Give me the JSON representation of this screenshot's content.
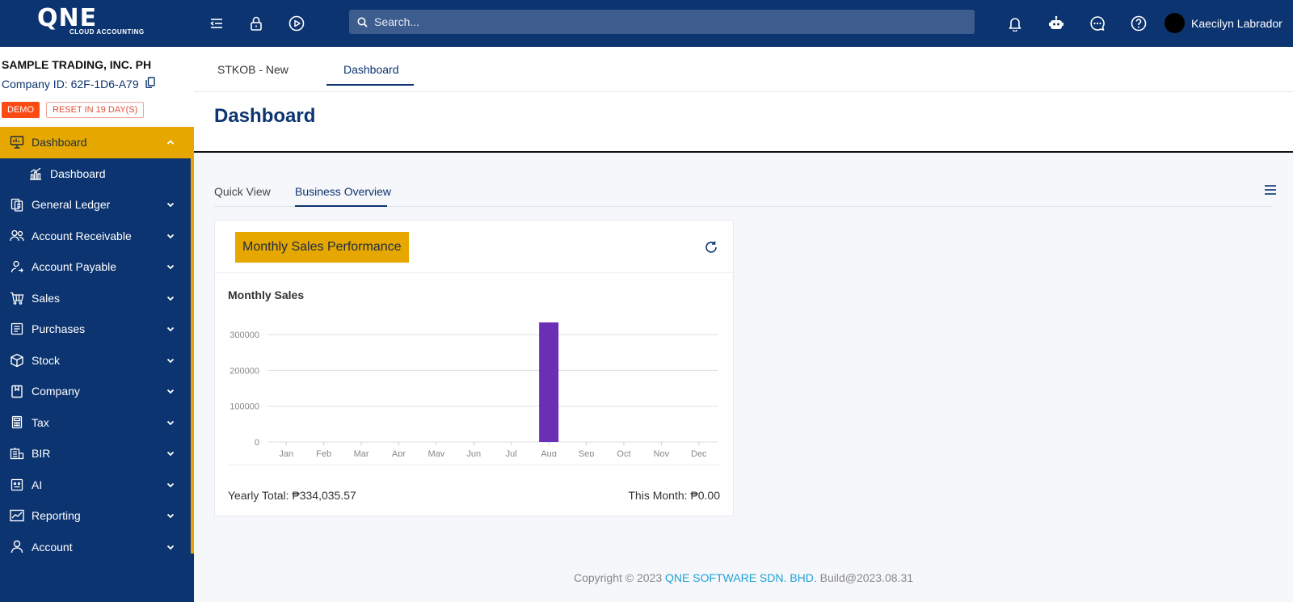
{
  "app": {
    "logo_text": "QNE",
    "logo_subtext": "CLOUD ACCOUNTING"
  },
  "topbar": {
    "search_placeholder": "Search...",
    "user_name": "Kaecilyn Labrador"
  },
  "company": {
    "name": "SAMPLE TRADING, INC. PH",
    "id_label": "Company ID: 62F-1D6-A79",
    "badge_demo": "DEMO",
    "badge_reset": "RESET IN 19 DAY(S)"
  },
  "sidebar": {
    "items": [
      {
        "label": "Dashboard",
        "icon": "monitor-icon",
        "active": true
      },
      {
        "label": "Dashboard",
        "icon": "chart-icon",
        "sub": true
      },
      {
        "label": "General Ledger",
        "icon": "ledger-icon"
      },
      {
        "label": "Account Receivable",
        "icon": "receivable-icon"
      },
      {
        "label": "Account Payable",
        "icon": "payable-icon"
      },
      {
        "label": "Sales",
        "icon": "cart-icon"
      },
      {
        "label": "Purchases",
        "icon": "purchases-icon"
      },
      {
        "label": "Stock",
        "icon": "box-icon"
      },
      {
        "label": "Company",
        "icon": "book-icon"
      },
      {
        "label": "Tax",
        "icon": "calculator-icon"
      },
      {
        "label": "BIR",
        "icon": "bank-icon"
      },
      {
        "label": "AI",
        "icon": "ai-icon"
      },
      {
        "label": "Reporting",
        "icon": "trend-icon"
      },
      {
        "label": "Account",
        "icon": "user-icon"
      }
    ]
  },
  "page_tabs": [
    {
      "label": "STKOB - New"
    },
    {
      "label": "Dashboard",
      "active": true
    }
  ],
  "page_title": "Dashboard",
  "sub_tabs": [
    {
      "label": "Quick View"
    },
    {
      "label": "Business Overview",
      "active": true
    }
  ],
  "card": {
    "title": "Monthly Sales Performance",
    "chart_title": "Monthly Sales",
    "yearly_total": "Yearly Total: ₱334,035.57",
    "this_month": "This Month: ₱0.00"
  },
  "chart_data": {
    "type": "bar",
    "title": "Monthly Sales",
    "categories": [
      "Jan",
      "Feb",
      "Mar",
      "Apr",
      "May",
      "Jun",
      "Jul",
      "Aug",
      "Sep",
      "Oct",
      "Nov",
      "Dec"
    ],
    "values": [
      0,
      0,
      0,
      0,
      0,
      0,
      0,
      334035.57,
      0,
      0,
      0,
      0
    ],
    "yticks": [
      0,
      100000,
      200000,
      300000
    ],
    "ylim": [
      0,
      334035.57
    ],
    "grid": true,
    "bar_color": "#6a2fb5"
  },
  "footer": {
    "prefix": "Copyright © 2023 ",
    "company": "QNE SOFTWARE SDN. BHD.",
    "build": " Build@2023.08.31"
  },
  "colors": {
    "navy": "#0c3470",
    "accent": "#e6a800",
    "demo": "#fc4a14"
  }
}
